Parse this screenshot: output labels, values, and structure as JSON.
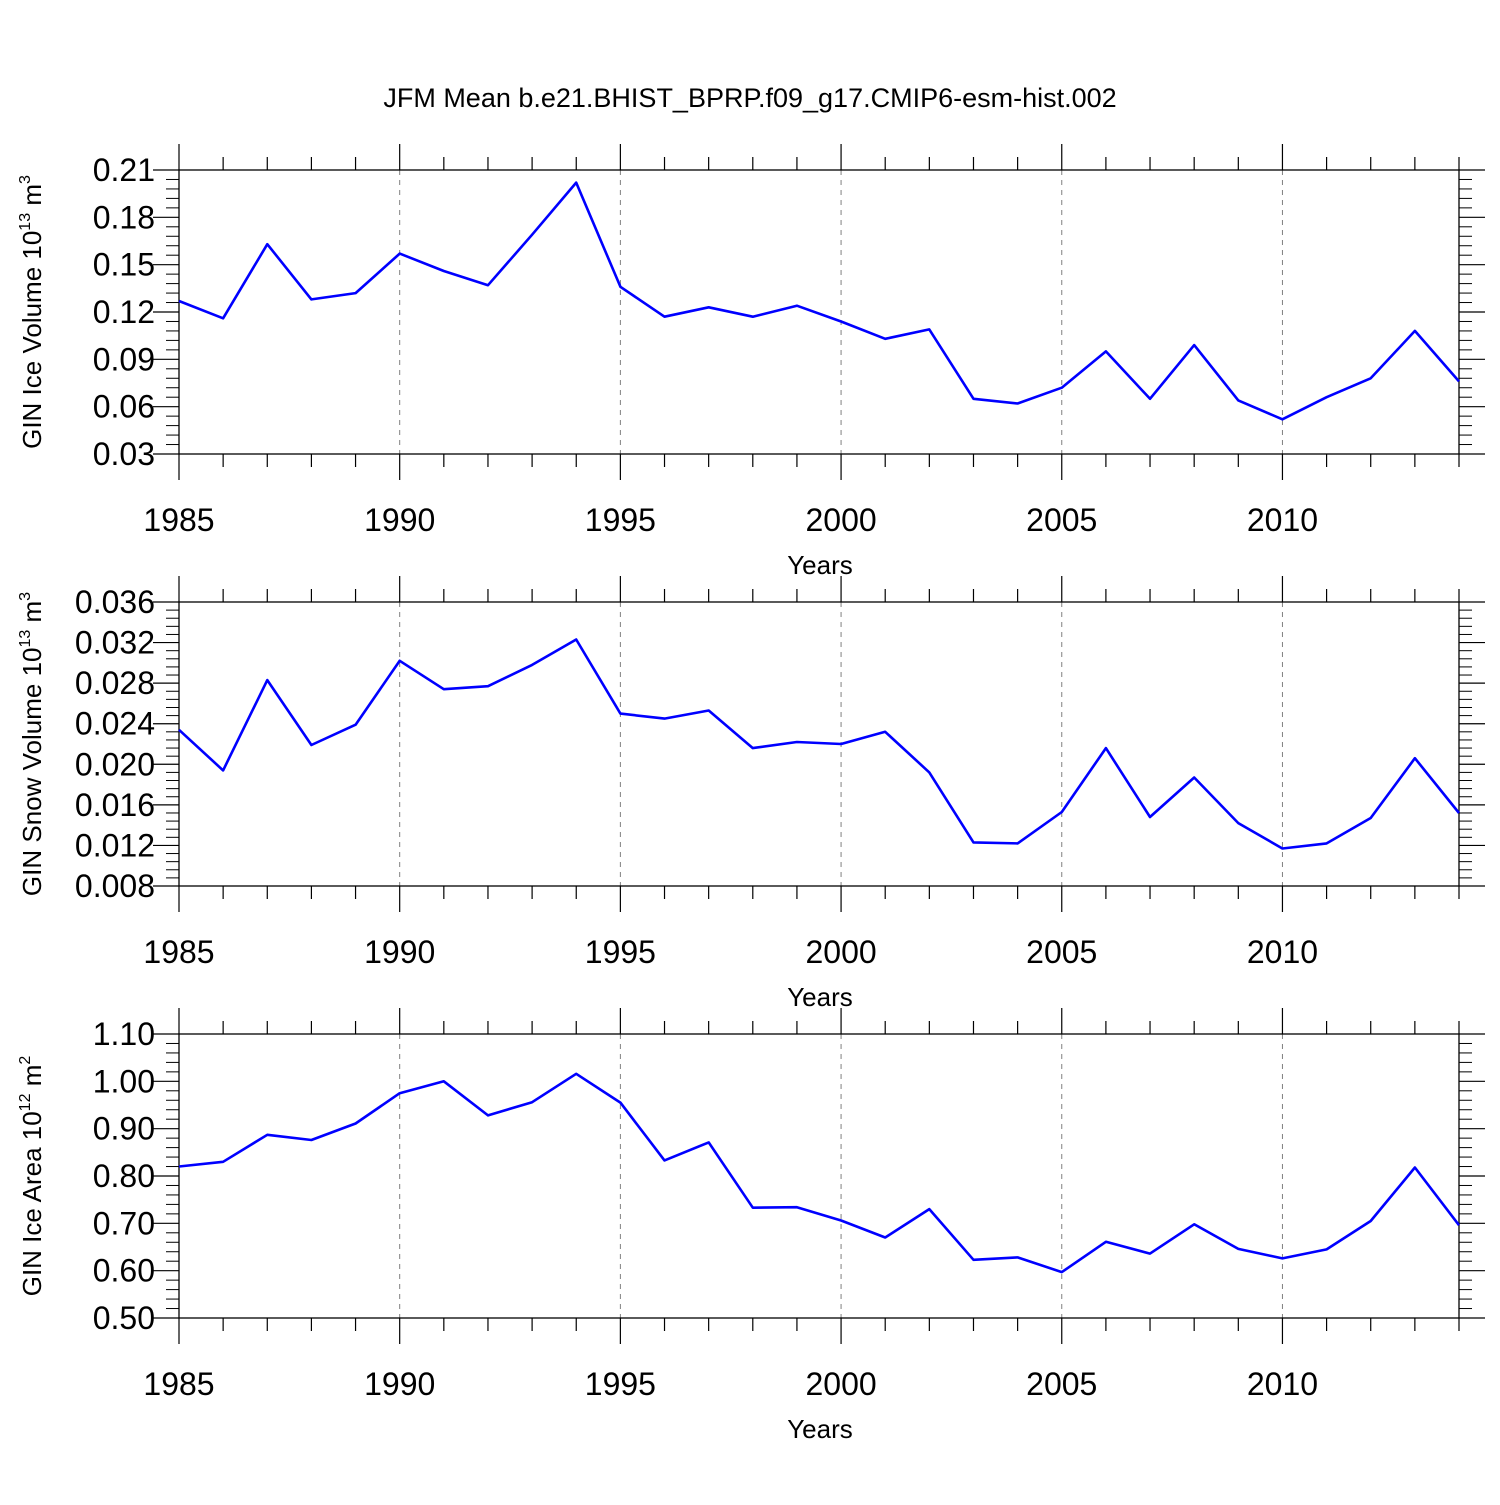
{
  "figure": {
    "title": "JFM Mean b.e21.BHIST_BPRP.f09_g17.CMIP6-esm-hist.002"
  },
  "style": {
    "line_color": "#0000ff",
    "axis_color": "#000000",
    "grid_color": "#808080"
  },
  "chart_data": [
    {
      "type": "line",
      "ylabel": {
        "base": "GIN Ice Volume 10",
        "exponent": "13",
        "unit": " m",
        "unit_exponent": "3"
      },
      "xlabel": "Years",
      "x": [
        1985,
        1986,
        1987,
        1988,
        1989,
        1990,
        1991,
        1992,
        1993,
        1994,
        1995,
        1996,
        1997,
        1998,
        1999,
        2000,
        2001,
        2002,
        2003,
        2004,
        2005,
        2006,
        2007,
        2008,
        2009,
        2010,
        2011,
        2012,
        2013,
        2014
      ],
      "series": [
        {
          "values": [
            0.127,
            0.116,
            0.163,
            0.128,
            0.132,
            0.157,
            0.146,
            0.137,
            0.169,
            0.202,
            0.136,
            0.117,
            0.123,
            0.117,
            0.124,
            0.114,
            0.103,
            0.109,
            0.065,
            0.062,
            0.072,
            0.095,
            0.065,
            0.099,
            0.064,
            0.052,
            0.066,
            0.078,
            0.108,
            0.076
          ]
        }
      ],
      "xlim": [
        1985,
        2014
      ],
      "ylim": [
        0.03,
        0.21
      ],
      "xticks": [
        "1985",
        "1990",
        "1995",
        "2000",
        "2005",
        "2010"
      ],
      "yticks": [
        "0.03",
        "0.06",
        "0.09",
        "0.12",
        "0.15",
        "0.18",
        "0.21"
      ],
      "ytick_values": [
        0.03,
        0.06,
        0.09,
        0.12,
        0.15,
        0.18,
        0.21
      ],
      "grid": "vertical dashed at major x ticks"
    },
    {
      "type": "line",
      "ylabel": {
        "base": "GIN Snow Volume 10",
        "exponent": "13",
        "unit": " m",
        "unit_exponent": "3"
      },
      "xlabel": "Years",
      "x": [
        1985,
        1986,
        1987,
        1988,
        1989,
        1990,
        1991,
        1992,
        1993,
        1994,
        1995,
        1996,
        1997,
        1998,
        1999,
        2000,
        2001,
        2002,
        2003,
        2004,
        2005,
        2006,
        2007,
        2008,
        2009,
        2010,
        2011,
        2012,
        2013,
        2014
      ],
      "series": [
        {
          "values": [
            0.0234,
            0.0194,
            0.0283,
            0.0219,
            0.0239,
            0.0302,
            0.0274,
            0.0277,
            0.0298,
            0.0323,
            0.025,
            0.0245,
            0.0253,
            0.0216,
            0.0222,
            0.022,
            0.0232,
            0.0192,
            0.0123,
            0.0122,
            0.0153,
            0.0216,
            0.0148,
            0.0187,
            0.0142,
            0.0117,
            0.0122,
            0.0147,
            0.0206,
            0.0152
          ]
        }
      ],
      "xlim": [
        1985,
        2014
      ],
      "ylim": [
        0.008,
        0.036
      ],
      "xticks": [
        "1985",
        "1990",
        "1995",
        "2000",
        "2005",
        "2010"
      ],
      "yticks": [
        "0.008",
        "0.012",
        "0.016",
        "0.020",
        "0.024",
        "0.028",
        "0.032",
        "0.036"
      ],
      "ytick_values": [
        0.008,
        0.012,
        0.016,
        0.02,
        0.024,
        0.028,
        0.032,
        0.036
      ],
      "grid": "vertical dashed at major x ticks"
    },
    {
      "type": "line",
      "ylabel": {
        "base": "GIN Ice Area 10",
        "exponent": "12",
        "unit": " m",
        "unit_exponent": "2"
      },
      "xlabel": "Years",
      "x": [
        1985,
        1986,
        1987,
        1988,
        1989,
        1990,
        1991,
        1992,
        1993,
        1994,
        1995,
        1996,
        1997,
        1998,
        1999,
        2000,
        2001,
        2002,
        2003,
        2004,
        2005,
        2006,
        2007,
        2008,
        2009,
        2010,
        2011,
        2012,
        2013,
        2014
      ],
      "series": [
        {
          "values": [
            0.82,
            0.83,
            0.887,
            0.876,
            0.911,
            0.975,
            1.0,
            0.928,
            0.956,
            1.016,
            0.955,
            0.833,
            0.871,
            0.733,
            0.734,
            0.706,
            0.67,
            0.73,
            0.623,
            0.628,
            0.597,
            0.661,
            0.636,
            0.698,
            0.646,
            0.626,
            0.645,
            0.705,
            0.818,
            0.696
          ]
        }
      ],
      "xlim": [
        1985,
        2014
      ],
      "ylim": [
        0.5,
        1.1
      ],
      "xticks": [
        "1985",
        "1990",
        "1995",
        "2000",
        "2005",
        "2010"
      ],
      "yticks": [
        "0.50",
        "0.60",
        "0.70",
        "0.80",
        "0.90",
        "1.00",
        "1.10"
      ],
      "ytick_values": [
        0.5,
        0.6,
        0.7,
        0.8,
        0.9,
        1.0,
        1.1
      ],
      "grid": "vertical dashed at major x ticks"
    }
  ]
}
